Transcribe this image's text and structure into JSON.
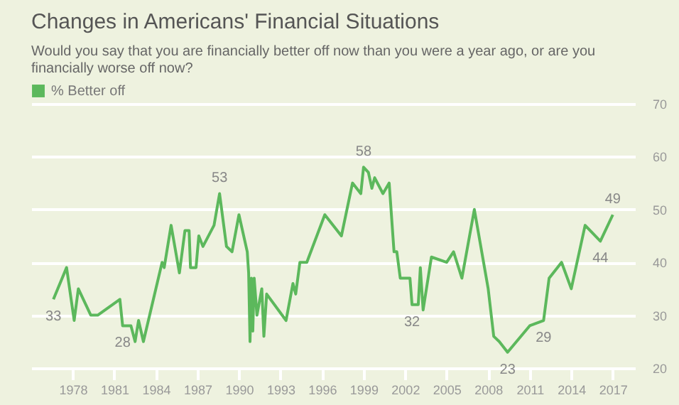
{
  "chart_data": {
    "type": "line",
    "title": "Changes in Americans' Financial Situations",
    "subtitle": "Would you say that you are financially better off now than you were a year ago, or are you financially worse off now?",
    "x": [
      1976.6,
      1977.55,
      1978.1,
      1978.4,
      1979.3,
      1979.8,
      1981.4,
      1981.6,
      1982.2,
      1982.5,
      1982.75,
      1983.1,
      1984.45,
      1984.6,
      1985.1,
      1985.7,
      1986.1,
      1986.4,
      1986.5,
      1986.9,
      1987.1,
      1987.4,
      1988.2,
      1988.6,
      1989.1,
      1989.5,
      1990.0,
      1990.6,
      1990.7,
      1990.8,
      1990.9,
      1991.0,
      1991.1,
      1991.3,
      1991.65,
      1991.8,
      1992.0,
      1993.4,
      1993.9,
      1994.1,
      1994.4,
      1994.9,
      1996.2,
      1997.4,
      1998.2,
      1998.8,
      1999.0,
      1999.35,
      1999.6,
      1999.8,
      2000.4,
      2000.85,
      2001.2,
      2001.4,
      2001.65,
      2002.35,
      2002.5,
      2002.95,
      2003.1,
      2003.3,
      2003.9,
      2005.0,
      2005.5,
      2006.1,
      2007.0,
      2008.0,
      2008.4,
      2008.8,
      2009.4,
      2011.0,
      2012.0,
      2012.4,
      2013.3,
      2014.0,
      2015.0,
      2016.1,
      2017.0
    ],
    "series": [
      {
        "name": "% Better off",
        "color": "#5cb85c",
        "values": [
          33,
          39,
          29,
          35,
          30,
          30,
          33,
          28,
          28,
          25,
          29,
          25,
          40,
          39,
          47,
          38,
          46,
          46,
          39,
          39,
          45,
          43,
          47,
          53,
          43,
          42,
          49,
          42,
          38,
          25,
          37,
          27,
          37,
          30,
          35,
          26,
          34,
          29,
          36,
          34,
          40,
          40,
          49,
          45,
          55,
          53,
          58,
          57,
          54,
          56,
          53,
          55,
          42,
          42,
          37,
          37,
          32,
          32,
          39,
          31,
          41,
          40,
          42,
          37,
          50,
          35,
          26,
          25,
          23,
          28,
          29,
          37,
          40,
          35,
          47,
          44,
          49
        ]
      }
    ],
    "annotations": [
      {
        "text": "33",
        "x": 1976.6,
        "y": 33
      },
      {
        "text": "28",
        "x": 1981.6,
        "y": 28
      },
      {
        "text": "53",
        "x": 1988.6,
        "y": 53
      },
      {
        "text": "58",
        "x": 1999.0,
        "y": 58
      },
      {
        "text": "32",
        "x": 2002.5,
        "y": 32
      },
      {
        "text": "23",
        "x": 2009.4,
        "y": 23
      },
      {
        "text": "29",
        "x": 2012.0,
        "y": 29
      },
      {
        "text": "44",
        "x": 2016.1,
        "y": 44
      },
      {
        "text": "49",
        "x": 2017.0,
        "y": 49
      }
    ],
    "xlim": [
      1975,
      2018.6
    ],
    "xticks": [
      1978,
      1981,
      1984,
      1987,
      1990,
      1993,
      1996,
      1999,
      2002,
      2005,
      2008,
      2011,
      2014,
      2017
    ],
    "ylim": [
      20,
      70
    ],
    "yticks": [
      20,
      30,
      40,
      50,
      60,
      70
    ],
    "grid": "y",
    "legend": "top left",
    "marker": "none",
    "line_style": "solid"
  }
}
